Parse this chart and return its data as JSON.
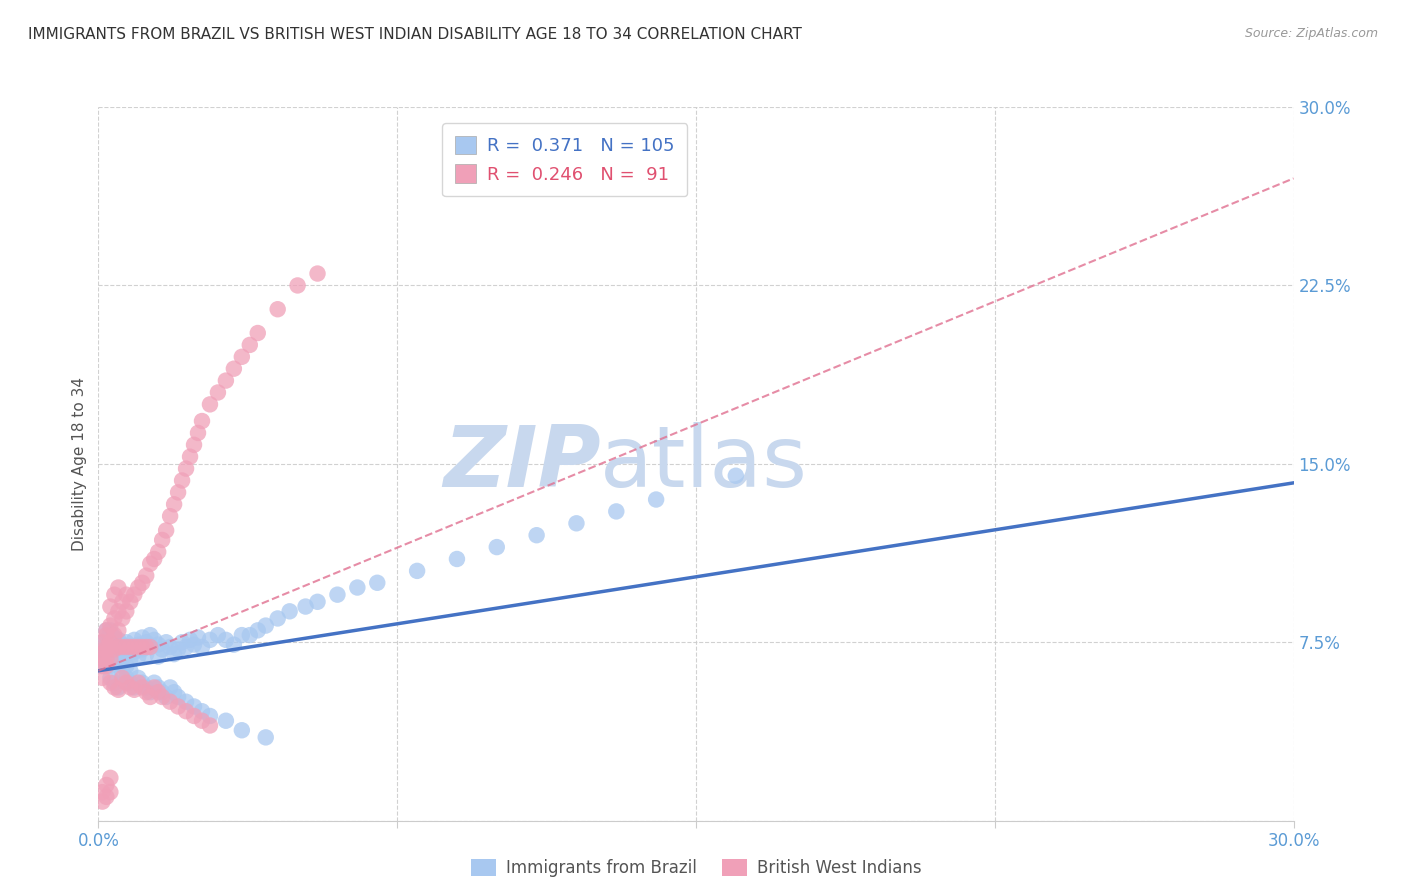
{
  "title": "IMMIGRANTS FROM BRAZIL VS BRITISH WEST INDIAN DISABILITY AGE 18 TO 34 CORRELATION CHART",
  "source": "Source: ZipAtlas.com",
  "ylabel": "Disability Age 18 to 34",
  "xlim": [
    0.0,
    0.3
  ],
  "ylim": [
    0.0,
    0.3
  ],
  "brazil_R": 0.371,
  "brazil_N": 105,
  "bwi_R": 0.246,
  "bwi_N": 91,
  "brazil_color": "#A8C8F0",
  "bwi_color": "#F0A0B8",
  "brazil_line_color": "#4472C4",
  "bwi_line_color": "#E07090",
  "watermark_zip": "ZIP",
  "watermark_atlas": "atlas",
  "watermark_color": "#C8D8EE",
  "background_color": "#FFFFFF",
  "grid_color": "#CCCCCC",
  "title_color": "#333333",
  "tick_color": "#5B9BD5",
  "source_color": "#999999",
  "ylabel_color": "#555555",
  "legend_color_brazil": "#4472C4",
  "legend_color_bwi": "#E05070",
  "brazil_line_start_y": 0.063,
  "brazil_line_end_y": 0.142,
  "bwi_line_start_y": 0.063,
  "bwi_line_end_y": 0.27,
  "brazil_scatter_x": [
    0.001,
    0.001,
    0.001,
    0.001,
    0.002,
    0.002,
    0.002,
    0.002,
    0.002,
    0.002,
    0.003,
    0.003,
    0.003,
    0.003,
    0.003,
    0.003,
    0.004,
    0.004,
    0.004,
    0.004,
    0.005,
    0.005,
    0.005,
    0.005,
    0.006,
    0.006,
    0.006,
    0.007,
    0.007,
    0.007,
    0.008,
    0.008,
    0.008,
    0.009,
    0.009,
    0.01,
    0.01,
    0.011,
    0.011,
    0.012,
    0.012,
    0.013,
    0.013,
    0.014,
    0.015,
    0.015,
    0.016,
    0.017,
    0.018,
    0.019,
    0.02,
    0.021,
    0.022,
    0.023,
    0.024,
    0.025,
    0.026,
    0.028,
    0.03,
    0.032,
    0.034,
    0.036,
    0.038,
    0.04,
    0.042,
    0.045,
    0.048,
    0.052,
    0.055,
    0.06,
    0.065,
    0.07,
    0.08,
    0.09,
    0.1,
    0.11,
    0.12,
    0.13,
    0.14,
    0.16,
    0.003,
    0.004,
    0.005,
    0.006,
    0.007,
    0.008,
    0.009,
    0.01,
    0.011,
    0.012,
    0.013,
    0.014,
    0.015,
    0.016,
    0.017,
    0.018,
    0.019,
    0.02,
    0.022,
    0.024,
    0.026,
    0.028,
    0.032,
    0.036,
    0.042
  ],
  "brazil_scatter_y": [
    0.065,
    0.07,
    0.075,
    0.068,
    0.072,
    0.076,
    0.08,
    0.068,
    0.073,
    0.065,
    0.07,
    0.075,
    0.08,
    0.068,
    0.073,
    0.065,
    0.072,
    0.077,
    0.068,
    0.074,
    0.071,
    0.076,
    0.066,
    0.072,
    0.074,
    0.069,
    0.065,
    0.075,
    0.07,
    0.065,
    0.073,
    0.068,
    0.063,
    0.076,
    0.071,
    0.074,
    0.069,
    0.077,
    0.072,
    0.075,
    0.07,
    0.078,
    0.073,
    0.076,
    0.074,
    0.069,
    0.072,
    0.075,
    0.073,
    0.07,
    0.072,
    0.075,
    0.073,
    0.076,
    0.074,
    0.077,
    0.073,
    0.076,
    0.078,
    0.076,
    0.074,
    0.078,
    0.078,
    0.08,
    0.082,
    0.085,
    0.088,
    0.09,
    0.092,
    0.095,
    0.098,
    0.1,
    0.105,
    0.11,
    0.115,
    0.12,
    0.125,
    0.13,
    0.135,
    0.145,
    0.06,
    0.058,
    0.056,
    0.062,
    0.06,
    0.058,
    0.056,
    0.06,
    0.058,
    0.056,
    0.054,
    0.058,
    0.056,
    0.054,
    0.052,
    0.056,
    0.054,
    0.052,
    0.05,
    0.048,
    0.046,
    0.044,
    0.042,
    0.038,
    0.035
  ],
  "bwi_scatter_x": [
    0.001,
    0.001,
    0.001,
    0.001,
    0.001,
    0.002,
    0.002,
    0.002,
    0.002,
    0.002,
    0.002,
    0.003,
    0.003,
    0.003,
    0.003,
    0.003,
    0.004,
    0.004,
    0.004,
    0.004,
    0.005,
    0.005,
    0.005,
    0.005,
    0.006,
    0.006,
    0.006,
    0.007,
    0.007,
    0.007,
    0.008,
    0.008,
    0.009,
    0.009,
    0.01,
    0.01,
    0.011,
    0.011,
    0.012,
    0.012,
    0.013,
    0.013,
    0.014,
    0.015,
    0.016,
    0.017,
    0.018,
    0.019,
    0.02,
    0.021,
    0.022,
    0.023,
    0.024,
    0.025,
    0.026,
    0.028,
    0.03,
    0.032,
    0.034,
    0.036,
    0.038,
    0.04,
    0.045,
    0.05,
    0.055,
    0.003,
    0.004,
    0.005,
    0.006,
    0.007,
    0.008,
    0.009,
    0.01,
    0.011,
    0.012,
    0.013,
    0.014,
    0.015,
    0.016,
    0.018,
    0.02,
    0.022,
    0.024,
    0.026,
    0.028,
    0.001,
    0.001,
    0.002,
    0.002,
    0.003,
    0.003
  ],
  "bwi_scatter_y": [
    0.065,
    0.07,
    0.075,
    0.068,
    0.06,
    0.072,
    0.078,
    0.068,
    0.08,
    0.073,
    0.065,
    0.075,
    0.082,
    0.068,
    0.09,
    0.073,
    0.078,
    0.085,
    0.072,
    0.095,
    0.08,
    0.088,
    0.073,
    0.098,
    0.085,
    0.092,
    0.073,
    0.088,
    0.095,
    0.073,
    0.092,
    0.073,
    0.095,
    0.073,
    0.098,
    0.073,
    0.1,
    0.073,
    0.103,
    0.073,
    0.108,
    0.073,
    0.11,
    0.113,
    0.118,
    0.122,
    0.128,
    0.133,
    0.138,
    0.143,
    0.148,
    0.153,
    0.158,
    0.163,
    0.168,
    0.175,
    0.18,
    0.185,
    0.19,
    0.195,
    0.2,
    0.205,
    0.215,
    0.225,
    0.23,
    0.058,
    0.056,
    0.055,
    0.06,
    0.058,
    0.056,
    0.055,
    0.058,
    0.056,
    0.054,
    0.052,
    0.056,
    0.054,
    0.052,
    0.05,
    0.048,
    0.046,
    0.044,
    0.042,
    0.04,
    0.012,
    0.008,
    0.015,
    0.01,
    0.018,
    0.012
  ]
}
